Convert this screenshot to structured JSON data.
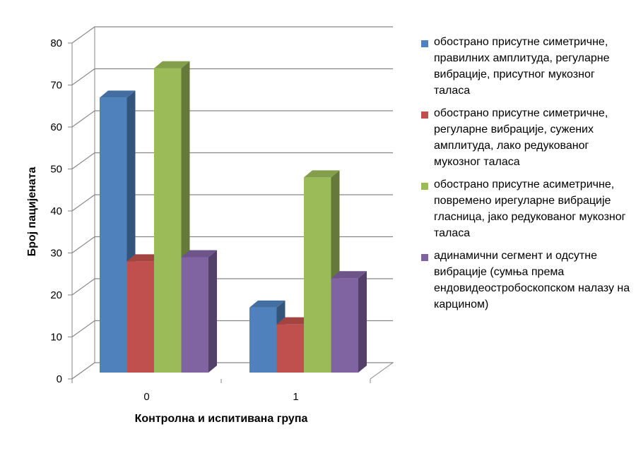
{
  "chart_data": {
    "type": "bar",
    "categories": [
      "0",
      "1"
    ],
    "series": [
      {
        "name": "обострано присутне симетричне, правилних амплитуда, регуларне вибрације, присутног мукозног таласа",
        "values": [
          67,
          17
        ],
        "color": "#4f81bd"
      },
      {
        "name": "обострано присутне симетричне, регуларне вибрације, сужених амплитуда, лако редукованог мукозног таласа",
        "values": [
          28,
          13
        ],
        "color": "#c0504d"
      },
      {
        "name": "обострано присутне асиметричне, повремено ирегуларне вибрације гласница, јако редукованог мукозног таласа",
        "values": [
          74,
          48
        ],
        "color": "#9bbb59"
      },
      {
        "name": "адинамични сегмент и одсутне вибрације (сумња према ендовидеостробоскопском налазу на карцином)",
        "values": [
          29,
          24
        ],
        "color": "#8064a2"
      }
    ],
    "xlabel": "Контролна и испитивана група",
    "ylabel": "Број пацијената",
    "ylim": [
      0,
      80
    ],
    "yticks": [
      "0",
      "10",
      "20",
      "30",
      "40",
      "50",
      "60",
      "70",
      "80"
    ],
    "grid": true,
    "legend_position": "right",
    "style": "3d-clustered-column"
  }
}
